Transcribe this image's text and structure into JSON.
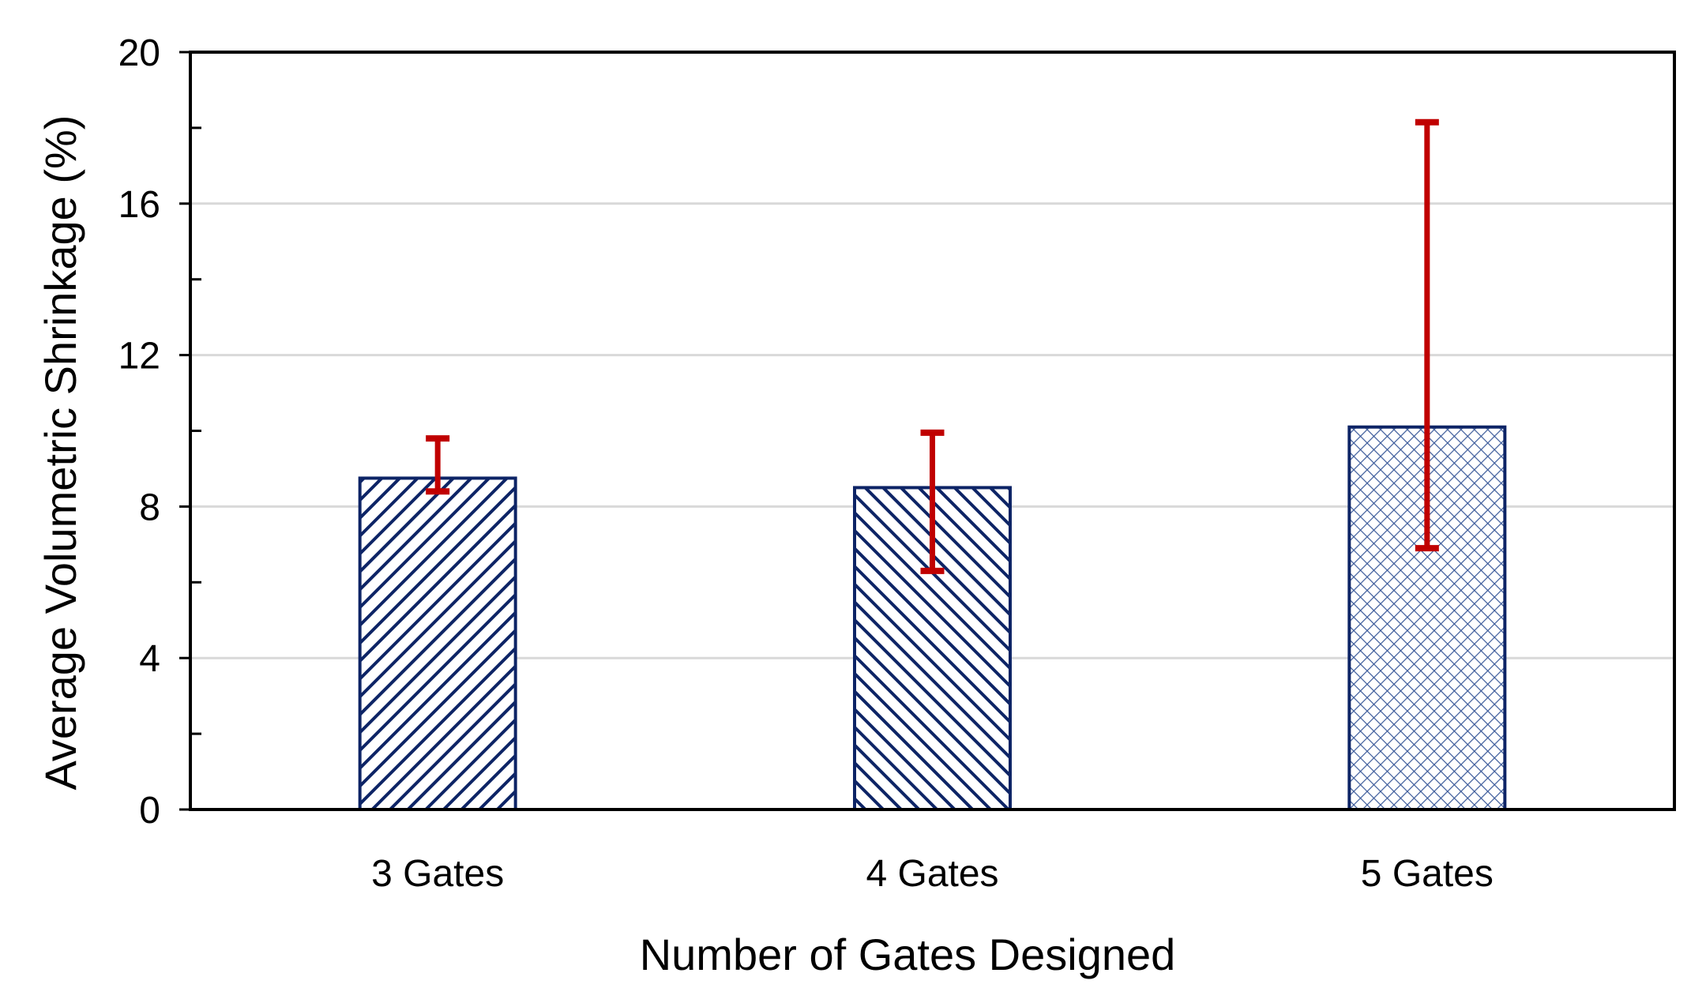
{
  "chart_data": {
    "type": "bar",
    "title": "",
    "xlabel": "Number of Gates Designed",
    "ylabel": "Average Volumetric Shrinkage (%)",
    "ylim": [
      0,
      20
    ],
    "y_major_ticks": [
      0,
      4,
      8,
      12,
      16,
      20
    ],
    "y_minor_ticks": [
      2,
      6,
      10,
      14,
      18
    ],
    "y_tick_labels": [
      "0",
      "4",
      "8",
      "12",
      "16",
      "20"
    ],
    "grid": "horizontal-major",
    "categories": [
      "3 Gates",
      "4 Gates",
      "5 Gates"
    ],
    "values": [
      8.75,
      8.5,
      10.1
    ],
    "error_low": [
      8.4,
      6.3,
      6.9
    ],
    "error_high": [
      9.8,
      9.95,
      18.15
    ],
    "bar_patterns": [
      "diagonal-up",
      "diagonal-down",
      "crosshatch"
    ]
  },
  "colors": {
    "bar_edge": "#0d2466",
    "bar_fill": "#ffffff",
    "error_bar": "#c00000",
    "gridline": "#d9d9d9",
    "axis": "#000000"
  }
}
